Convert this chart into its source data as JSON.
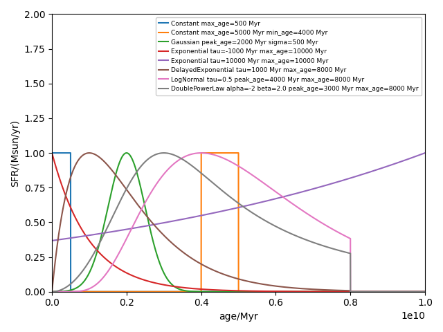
{
  "title": "",
  "xlabel": "age/Myr",
  "ylabel": "SFR/(Msun/yr)",
  "xlim": [
    0,
    10000000000.0
  ],
  "ylim": [
    0,
    2.0
  ],
  "age_max": 10000000000.0,
  "legend_entries": [
    "Constant max_age=500 Myr",
    "Constant max_age=5000 Myr min_age=4000 Myr",
    "Gaussian peak_age=2000 Myr sigma=500 Myr",
    "Exponential tau=-1000 Myr max_age=10000 Myr",
    "Exponential tau=10000 Myr max_age=10000 Myr",
    "DelayedExponential tau=1000 Myr max_age=8000 Myr",
    "LogNormal tau=0.5 peak_age=4000 Myr max_age=8000 Myr",
    "DoublePowerLaw alpha=-2 beta=2.0 peak_age=3000 Myr max_age=8000 Myr"
  ],
  "colors": [
    "#1f77b4",
    "#ff7f0e",
    "#2ca02c",
    "#d62728",
    "#9467bd",
    "#8c564b",
    "#e377c2",
    "#7f7f7f"
  ],
  "figsize": [
    6.4,
    4.8
  ],
  "dpi": 100
}
